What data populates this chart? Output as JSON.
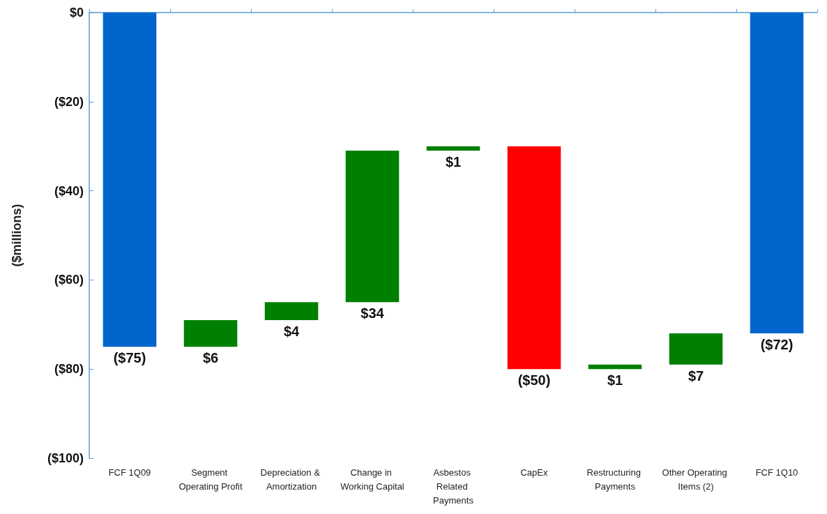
{
  "chart_data": {
    "type": "bar",
    "ylabel": "($millions)",
    "categories": [
      "FCF 1Q09",
      "Segment Operating Profit",
      "Depreciation & Amortization",
      "Change in Working Capital",
      "Asbestos Related Payments",
      "CapEx",
      "Restructuring Payments",
      "Other Operating Items (2)",
      "FCF 1Q10"
    ],
    "values": [
      -75,
      6,
      4,
      34,
      1,
      -50,
      1,
      7,
      -72
    ],
    "base": [
      0,
      -75,
      -69,
      -65,
      -31,
      -30,
      -80,
      -79,
      0
    ],
    "colors": [
      "#0066cc",
      "#008000",
      "#008000",
      "#008000",
      "#008000",
      "#ff0000",
      "#008000",
      "#008000",
      "#0066cc"
    ],
    "value_labels": [
      "($75)",
      "$6",
      "$4",
      "$34",
      "$1",
      "($50)",
      "$1",
      "$7",
      "($72)"
    ],
    "ylim": [
      -100,
      0
    ],
    "yticks": [
      {
        "value": -100,
        "label": "($100)"
      },
      {
        "value": -80,
        "label": "($80)"
      },
      {
        "value": -60,
        "label": "($60)"
      },
      {
        "value": -40,
        "label": "($40)"
      },
      {
        "value": -20,
        "label": "($20)"
      },
      {
        "value": 0,
        "label": "$0"
      }
    ],
    "grid": false
  }
}
